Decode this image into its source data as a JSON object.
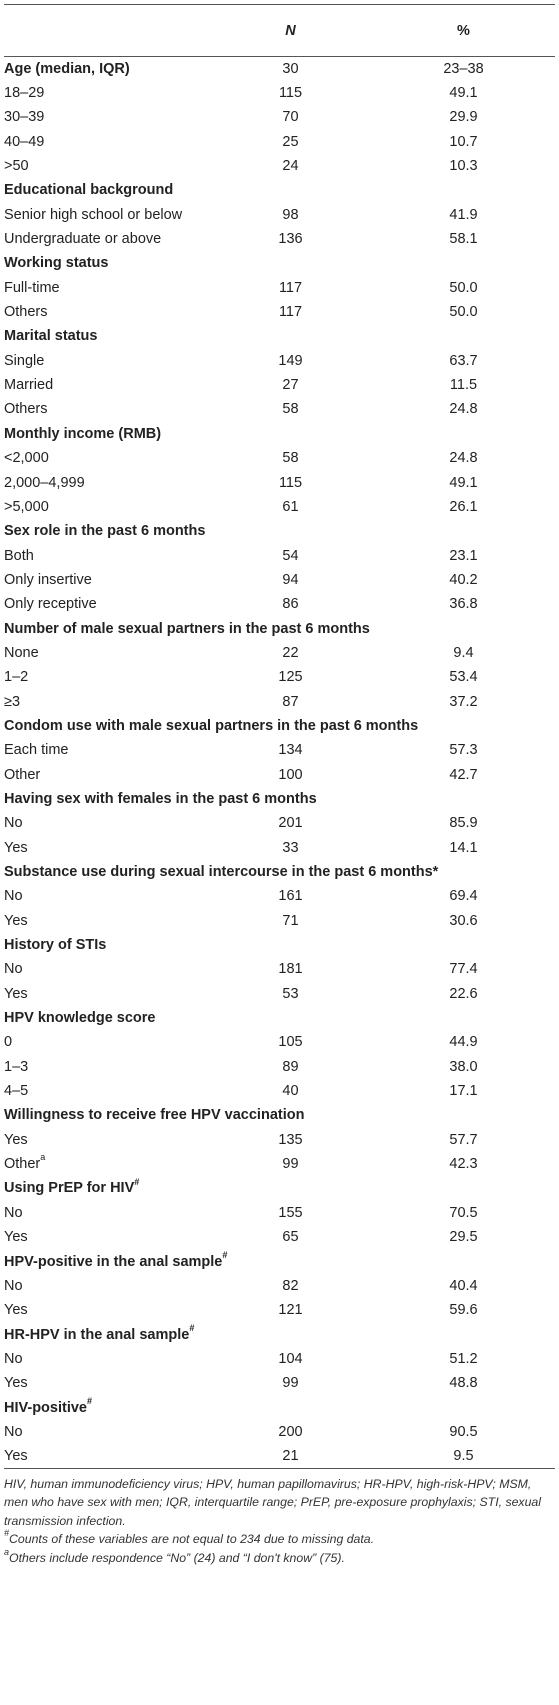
{
  "header": {
    "col0": "",
    "col1": "N",
    "col2": "%"
  },
  "rows": [
    {
      "label": "Age (median, IQR)",
      "n": "30",
      "pct": "23–38",
      "section": true
    },
    {
      "label": "18–29",
      "n": "115",
      "pct": "49.1"
    },
    {
      "label": "30–39",
      "n": "70",
      "pct": "29.9"
    },
    {
      "label": "40–49",
      "n": "25",
      "pct": "10.7"
    },
    {
      "label": ">50",
      "n": "24",
      "pct": "10.3"
    },
    {
      "label": "Educational background",
      "section": true
    },
    {
      "label": "Senior high school or below",
      "n": "98",
      "pct": "41.9"
    },
    {
      "label": "Undergraduate or above",
      "n": "136",
      "pct": "58.1"
    },
    {
      "label": "Working status",
      "section": true
    },
    {
      "label": "Full-time",
      "n": "117",
      "pct": "50.0"
    },
    {
      "label": "Others",
      "n": "117",
      "pct": "50.0"
    },
    {
      "label": "Marital status",
      "section": true
    },
    {
      "label": "Single",
      "n": "149",
      "pct": "63.7"
    },
    {
      "label": "Married",
      "n": "27",
      "pct": "11.5"
    },
    {
      "label": "Others",
      "n": "58",
      "pct": "24.8"
    },
    {
      "label": "Monthly income (RMB)",
      "section": true
    },
    {
      "label": "<2,000",
      "n": "58",
      "pct": "24.8"
    },
    {
      "label": "2,000–4,999",
      "n": "115",
      "pct": "49.1"
    },
    {
      "label": ">5,000",
      "n": "61",
      "pct": "26.1"
    },
    {
      "label": "Sex role in the past 6 months",
      "section": true
    },
    {
      "label": "Both",
      "n": "54",
      "pct": "23.1"
    },
    {
      "label": "Only insertive",
      "n": "94",
      "pct": "40.2"
    },
    {
      "label": "Only receptive",
      "n": "86",
      "pct": "36.8"
    },
    {
      "label": "Number of male sexual partners in the past 6 months",
      "section": true
    },
    {
      "label": "None",
      "n": "22",
      "pct": "9.4"
    },
    {
      "label": "1–2",
      "n": "125",
      "pct": "53.4"
    },
    {
      "label": "≥3",
      "n": "87",
      "pct": "37.2"
    },
    {
      "label": "Condom use with male sexual partners in the past 6 months",
      "section": true
    },
    {
      "label": "Each time",
      "n": "134",
      "pct": "57.3"
    },
    {
      "label": "Other",
      "n": "100",
      "pct": "42.7"
    },
    {
      "label": "Having sex with females in the past 6 months",
      "section": true
    },
    {
      "label": "No",
      "n": "201",
      "pct": "85.9"
    },
    {
      "label": "Yes",
      "n": "33",
      "pct": "14.1"
    },
    {
      "label": "Substance use during sexual intercourse in the past 6 months*",
      "section": true
    },
    {
      "label": "No",
      "n": "161",
      "pct": "69.4"
    },
    {
      "label": "Yes",
      "n": "71",
      "pct": "30.6"
    },
    {
      "label": "History of STIs",
      "section": true
    },
    {
      "label": "No",
      "n": "181",
      "pct": "77.4"
    },
    {
      "label": "Yes",
      "n": "53",
      "pct": "22.6"
    },
    {
      "label": "HPV knowledge score",
      "section": true
    },
    {
      "label": "0",
      "n": "105",
      "pct": "44.9"
    },
    {
      "label": "1–3",
      "n": "89",
      "pct": "38.0"
    },
    {
      "label": "4–5",
      "n": "40",
      "pct": "17.1"
    },
    {
      "label": "Willingness to receive free HPV vaccination",
      "section": true
    },
    {
      "label": "Yes",
      "n": "135",
      "pct": "57.7"
    },
    {
      "label": "Other",
      "sup": "a",
      "n": "99",
      "pct": "42.3"
    },
    {
      "label": "Using PrEP for HIV",
      "sup": "#",
      "section": true
    },
    {
      "label": "No",
      "n": "155",
      "pct": "70.5"
    },
    {
      "label": "Yes",
      "n": "65",
      "pct": "29.5"
    },
    {
      "label": "HPV-positive in the anal sample",
      "sup": "#",
      "section": true
    },
    {
      "label": "No",
      "n": "82",
      "pct": "40.4"
    },
    {
      "label": "Yes",
      "n": "121",
      "pct": "59.6"
    },
    {
      "label": "HR-HPV in the anal sample",
      "sup": "#",
      "section": true
    },
    {
      "label": "No",
      "n": "104",
      "pct": "51.2"
    },
    {
      "label": "Yes",
      "n": "99",
      "pct": "48.8"
    },
    {
      "label": "HIV-positive",
      "sup": "#",
      "section": true
    },
    {
      "label": "No",
      "n": "200",
      "pct": "90.5"
    },
    {
      "label": "Yes",
      "n": "21",
      "pct": "9.5"
    }
  ],
  "notes": {
    "abbrev": "HIV, human immunodeficiency virus; HPV, human papillomavirus; HR-HPV, high-risk-HPV; MSM, men who have sex with men; IQR, interquartile range; PrEP, pre-exposure prophylaxis; STI, sexual transmission infection.",
    "hash_mark": "#",
    "hash_text": "Counts of these variables are not equal to 234 due to missing data.",
    "a_mark": "a",
    "a_text": "Others include respondence “No” (24) and “I don't know” (75)."
  }
}
